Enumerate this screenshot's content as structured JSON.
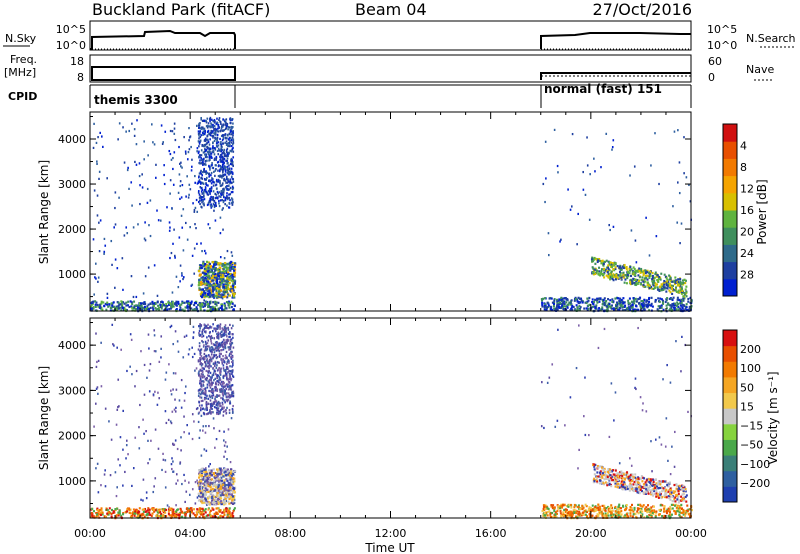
{
  "header": {
    "site": "Buckland Park (fitACF)",
    "beam": "Beam 04",
    "date": "27/Oct/2016"
  },
  "strips": {
    "nsky_label": "N.Sky",
    "nsky_ticks": [
      "10^5",
      "10^0"
    ],
    "nsearch_label": "N.Search",
    "freq_label_lines": [
      "Freq.",
      "[MHz]"
    ],
    "freq_ticks": [
      "18",
      "8"
    ],
    "nave_ticks": [
      "60",
      "0"
    ],
    "nave_label": "Nave",
    "cpid_label": "CPID",
    "cpid_modes": [
      "themis 3300",
      "normal (fast) 151"
    ]
  },
  "chart_data": [
    {
      "type": "heatmap",
      "name": "power",
      "ylabel": "Slant Range [km]",
      "ylim": [
        180,
        4600
      ],
      "y_ticks": [
        "1000",
        "2000",
        "3000",
        "4000"
      ],
      "x_ticks": [
        "00:00",
        "04:00",
        "08:00",
        "12:00",
        "16:00",
        "20:00",
        "00:00"
      ],
      "xlim_hours": [
        0,
        24
      ],
      "colorbar": {
        "label": "Power [dB]",
        "ticks": [
          "4",
          "8",
          "12",
          "16",
          "20",
          "24",
          "28"
        ],
        "colors": [
          "#0020d0",
          "#1e3fa0",
          "#2e6a8a",
          "#3f8f5d",
          "#5fb33f",
          "#d8c000",
          "#f5a400",
          "#f27a00",
          "#e84f00",
          "#d01010"
        ]
      },
      "data_windows_hours": [
        [
          0.0,
          5.75
        ],
        [
          18.0,
          24.0
        ]
      ]
    },
    {
      "type": "heatmap",
      "name": "velocity",
      "ylabel": "Slant Range [km]",
      "ylim": [
        180,
        4600
      ],
      "y_ticks": [
        "1000",
        "2000",
        "3000",
        "4000"
      ],
      "x_ticks": [
        "00:00",
        "04:00",
        "08:00",
        "12:00",
        "16:00",
        "20:00",
        "00:00"
      ],
      "xlim_hours": [
        0,
        24
      ],
      "xlabel": "Time UT",
      "colorbar": {
        "label": "Velocity [m s⁻¹]",
        "ticks": [
          "200",
          "100",
          "50",
          "15",
          "−15",
          "−50",
          "−100",
          "−200"
        ],
        "colors": [
          "#1e3fb0",
          "#2e5fa0",
          "#3a7f78",
          "#4aa84a",
          "#86d33e",
          "#c8c8c8",
          "#f2c94c",
          "#f5a623",
          "#f27a00",
          "#e84f00",
          "#d81010"
        ]
      },
      "data_windows_hours": [
        [
          0.0,
          5.75
        ],
        [
          18.0,
          24.0
        ]
      ]
    }
  ]
}
